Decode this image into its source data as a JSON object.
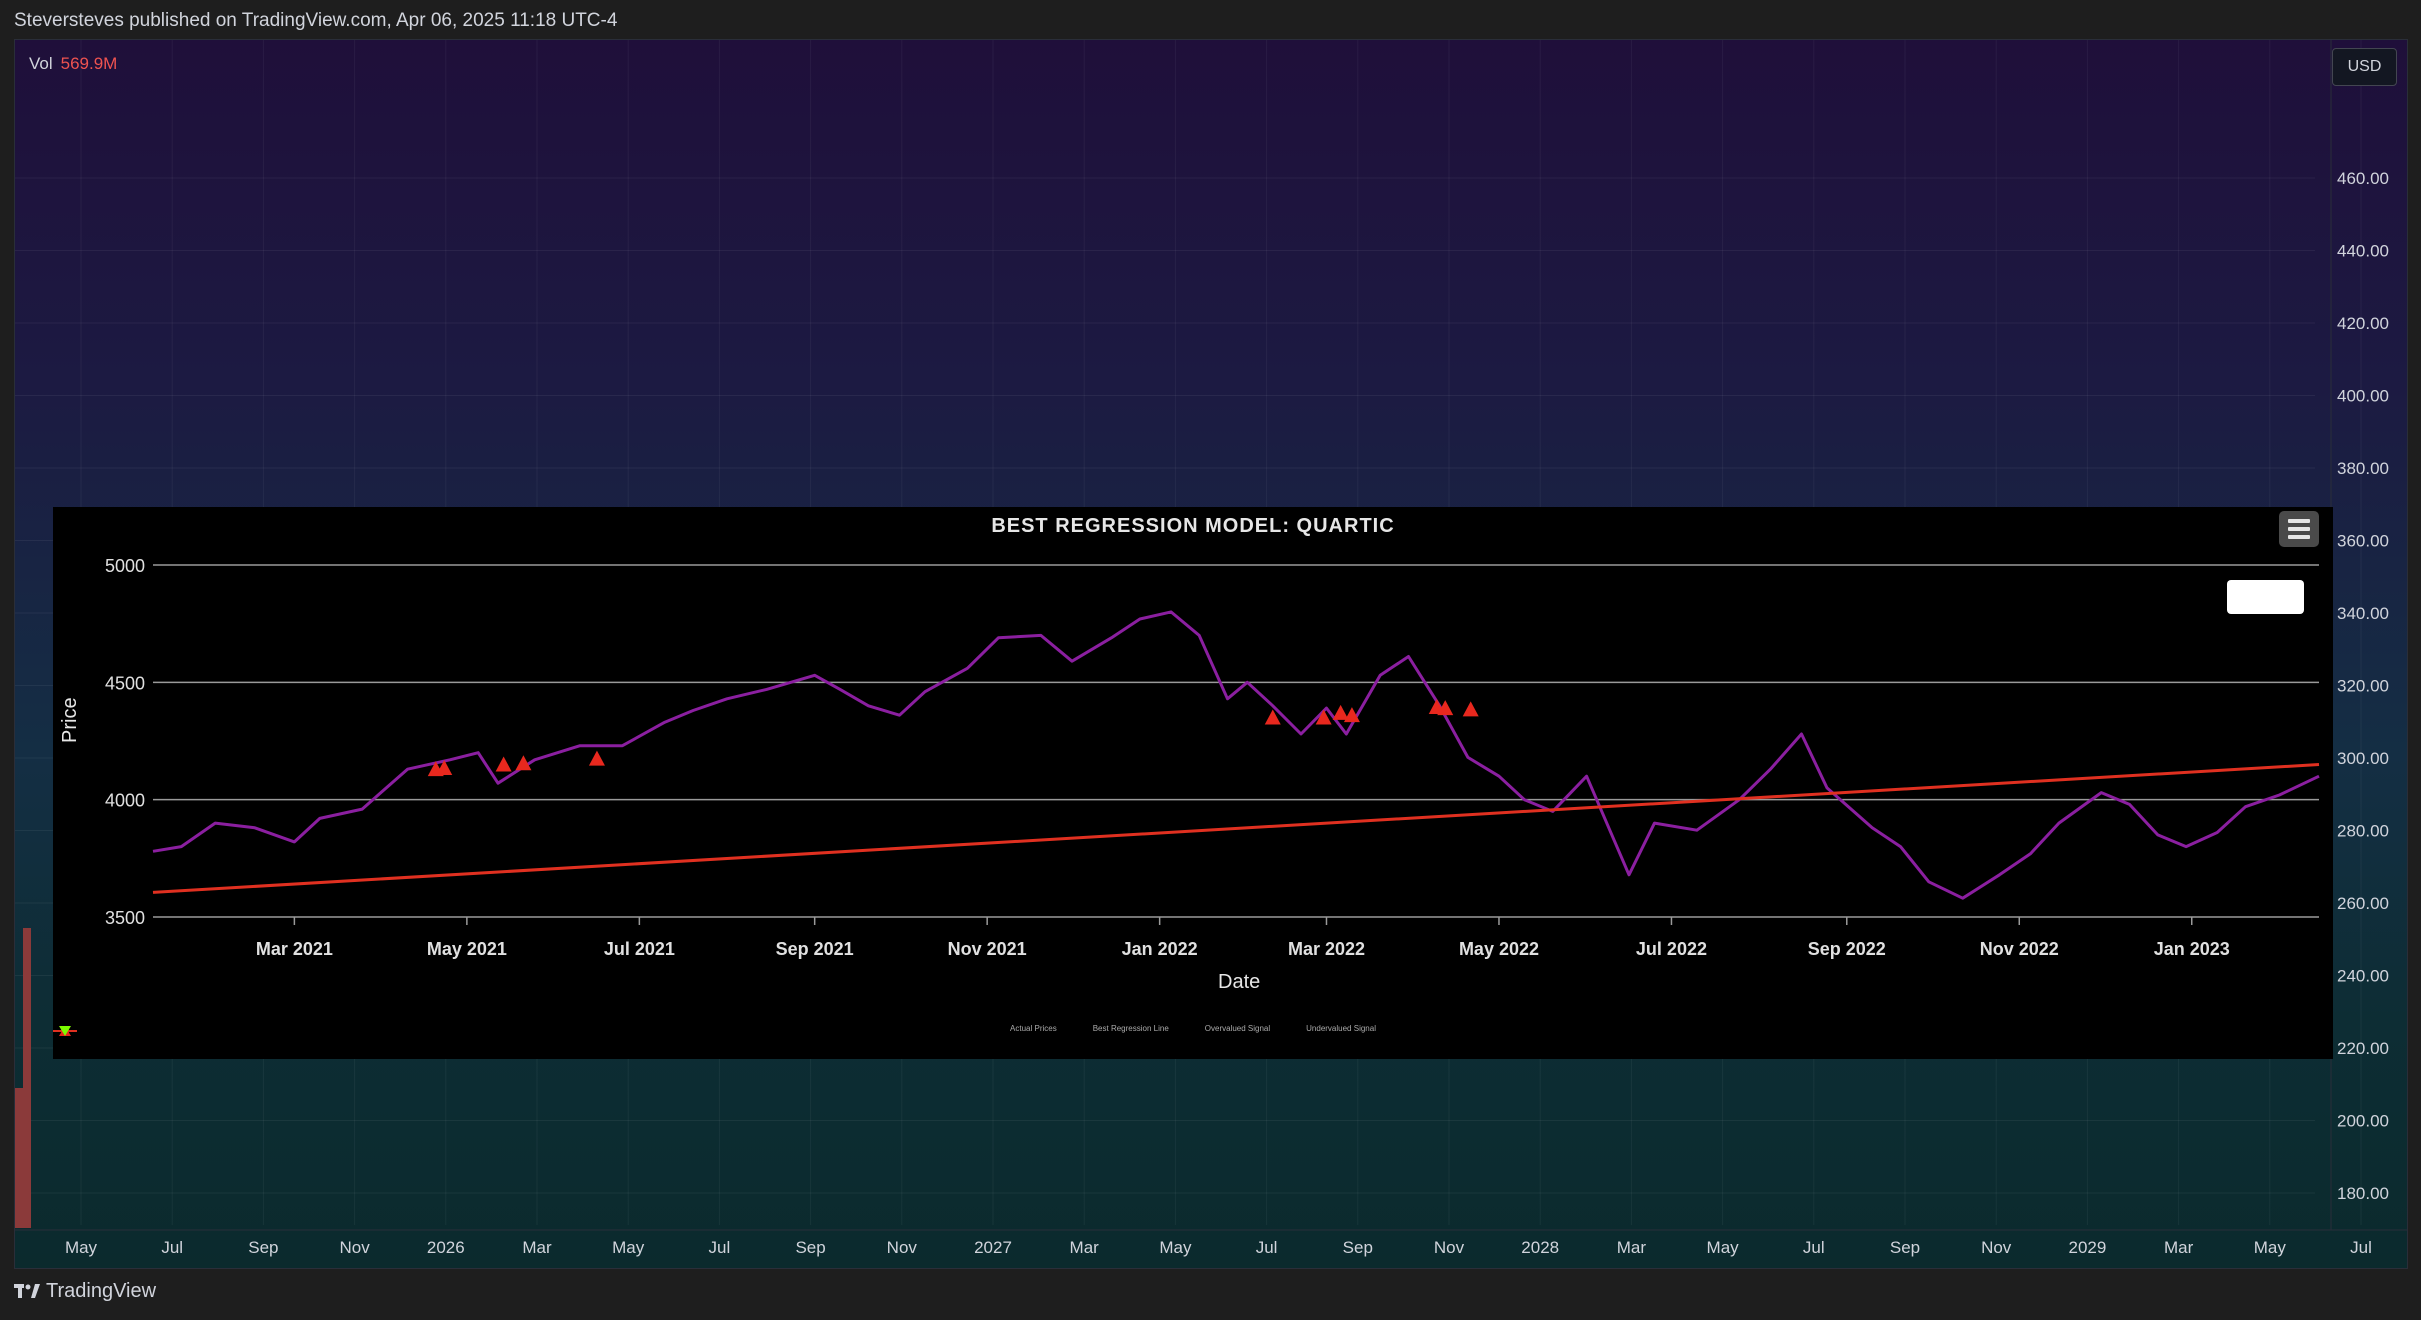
{
  "header": {
    "publish_line": "Steversteves published on TradingView.com, Apr 06, 2025 11:18 UTC-4"
  },
  "tv_chart": {
    "volume_label": "Vol",
    "volume_value": "569.9M",
    "currency_button": "USD",
    "price_axis_labels": [
      "460.00",
      "440.00",
      "420.00",
      "400.00",
      "380.00",
      "360.00",
      "340.00",
      "320.00",
      "300.00",
      "280.00",
      "260.00",
      "240.00",
      "220.00",
      "200.00",
      "180.00"
    ],
    "time_axis_labels": [
      "May",
      "Jul",
      "Sep",
      "Nov",
      "2026",
      "Mar",
      "May",
      "Jul",
      "Sep",
      "Nov",
      "2027",
      "Mar",
      "May",
      "Jul",
      "Sep",
      "Nov",
      "2028",
      "Mar",
      "May",
      "Jul",
      "Sep",
      "Nov",
      "2029",
      "Mar",
      "May",
      "Jul"
    ],
    "volume_bar_color": "#8b3a3a",
    "colors": {
      "up": "#26a69a",
      "down": "#ef5350"
    }
  },
  "footer": {
    "brand": "TradingView",
    "logo_icon": "tradingview-logo-icon"
  },
  "chart_data": {
    "type": "line",
    "title": "BEST REGRESSION MODEL: QUARTIC",
    "xlabel": "Date",
    "ylabel": "Price",
    "ylim": [
      3500,
      5000
    ],
    "y_ticks": [
      "5000",
      "4500",
      "4000",
      "3500"
    ],
    "x_tick_labels": [
      "Mar 2021",
      "May 2021",
      "Jul 2021",
      "Sep 2021",
      "Nov 2021",
      "Jan 2022",
      "Mar 2022",
      "May 2022",
      "Jul 2022",
      "Sep 2022",
      "Nov 2022",
      "Jan 2023"
    ],
    "x_range": [
      "2021-01-10",
      "2023-02-15"
    ],
    "series": [
      {
        "name": "Actual Prices",
        "color": "#8b1fa0",
        "dates": [
          "2021-01-10",
          "2021-01-20",
          "2021-02-01",
          "2021-02-15",
          "2021-03-01",
          "2021-03-10",
          "2021-03-25",
          "2021-04-10",
          "2021-04-25",
          "2021-05-05",
          "2021-05-12",
          "2021-05-25",
          "2021-06-10",
          "2021-06-25",
          "2021-07-10",
          "2021-07-20",
          "2021-08-01",
          "2021-08-15",
          "2021-09-01",
          "2021-09-10",
          "2021-09-20",
          "2021-10-01",
          "2021-10-10",
          "2021-10-25",
          "2021-11-05",
          "2021-11-20",
          "2021-12-01",
          "2021-12-15",
          "2021-12-25",
          "2022-01-05",
          "2022-01-15",
          "2022-01-25",
          "2022-02-01",
          "2022-02-10",
          "2022-02-20",
          "2022-03-01",
          "2022-03-08",
          "2022-03-20",
          "2022-03-30",
          "2022-04-10",
          "2022-04-20",
          "2022-05-01",
          "2022-05-10",
          "2022-05-20",
          "2022-06-01",
          "2022-06-16",
          "2022-06-25",
          "2022-07-10",
          "2022-07-25",
          "2022-08-05",
          "2022-08-16",
          "2022-08-25",
          "2022-09-10",
          "2022-09-20",
          "2022-09-30",
          "2022-10-12",
          "2022-10-25",
          "2022-11-05",
          "2022-11-15",
          "2022-11-30",
          "2022-12-10",
          "2022-12-20",
          "2022-12-30",
          "2023-01-10",
          "2023-01-20",
          "2023-02-01",
          "2023-02-15"
        ],
        "values": [
          3780,
          3800,
          3900,
          3880,
          3820,
          3920,
          3960,
          4130,
          4170,
          4200,
          4070,
          4170,
          4230,
          4230,
          4330,
          4380,
          4430,
          4470,
          4530,
          4470,
          4400,
          4360,
          4460,
          4560,
          4690,
          4700,
          4590,
          4690,
          4770,
          4800,
          4700,
          4430,
          4500,
          4400,
          4280,
          4390,
          4280,
          4530,
          4610,
          4400,
          4180,
          4100,
          4000,
          3950,
          4100,
          3680,
          3900,
          3870,
          4000,
          4130,
          4280,
          4050,
          3880,
          3800,
          3650,
          3580,
          3680,
          3770,
          3900,
          4030,
          3980,
          3850,
          3800,
          3860,
          3970,
          4020,
          4100
        ]
      },
      {
        "name": "Best Regression Line",
        "color": "#e03020",
        "dates": [
          "2021-01-10",
          "2023-02-15"
        ],
        "values": [
          3605,
          4150
        ]
      },
      {
        "name": "Overvalued Signal",
        "color": "#e8281e",
        "marker": "triangle-up",
        "dates": [
          "2021-04-20",
          "2021-04-23",
          "2021-05-14",
          "2021-05-21",
          "2021-06-16",
          "2022-02-10",
          "2022-02-28",
          "2022-03-06",
          "2022-03-10",
          "2022-04-09",
          "2022-04-12",
          "2022-04-21"
        ],
        "values": [
          4130,
          4135,
          4150,
          4155,
          4175,
          4350,
          4350,
          4370,
          4360,
          4395,
          4390,
          4385
        ]
      },
      {
        "name": "Undervalued Signal",
        "color": "#7cfc00",
        "marker": "triangle-down",
        "dates": [],
        "values": []
      }
    ]
  }
}
